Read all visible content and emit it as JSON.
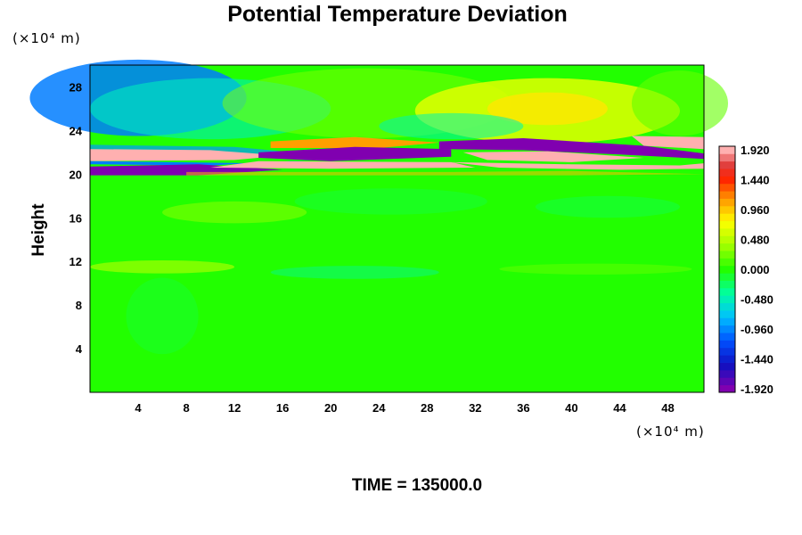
{
  "chart_data": {
    "type": "heatmap",
    "title": "Potential Temperature Deviation",
    "ylabel": "Height",
    "y_unit": "(×10⁴ m)",
    "x_unit": "(×10⁴ m)",
    "x_ticks": [
      "4",
      "8",
      "12",
      "16",
      "20",
      "24",
      "28",
      "32",
      "36",
      "40",
      "44",
      "48"
    ],
    "y_ticks": [
      "4",
      "8",
      "12",
      "16",
      "20",
      "24",
      "28"
    ],
    "xlim": [
      0,
      51
    ],
    "ylim": [
      0,
      30
    ],
    "colorbar": {
      "labels": [
        "1.920",
        "1.440",
        "0.960",
        "0.480",
        "0.000",
        "-0.480",
        "-0.960",
        "-1.440",
        "-1.920"
      ],
      "range": [
        -1.92,
        1.92
      ],
      "levels": 33
    },
    "time_label": "TIME = 135000.0",
    "colors": {
      "neutral": "#22ff00",
      "max": "#ffb0b0",
      "min": "#8000b0"
    }
  }
}
